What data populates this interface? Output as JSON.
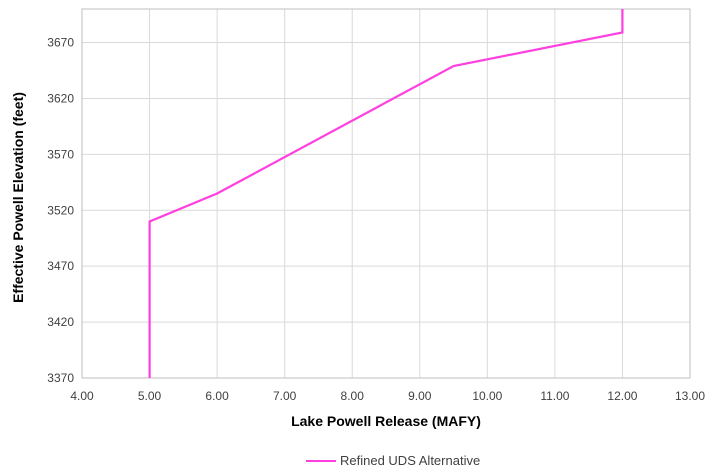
{
  "chart_data": {
    "type": "line",
    "title": "",
    "xlabel": "Lake Powell Release (MAFY)",
    "ylabel": "Effective Powell Elevation (feet)",
    "xlim": [
      4.0,
      13.0
    ],
    "ylim": [
      3370,
      3700
    ],
    "x_ticks": [
      "4.00",
      "5.00",
      "6.00",
      "7.00",
      "8.00",
      "9.00",
      "10.00",
      "11.00",
      "12.00",
      "13.00"
    ],
    "y_ticks": [
      "3370",
      "3420",
      "3470",
      "3520",
      "3570",
      "3620",
      "3670"
    ],
    "grid": true,
    "legend_position": "bottom",
    "series": [
      {
        "name": "Refined UDS Alternative",
        "color": "#FF3FDF",
        "points": [
          {
            "x": 5.0,
            "y": 3370
          },
          {
            "x": 5.0,
            "y": 3510
          },
          {
            "x": 6.0,
            "y": 3535
          },
          {
            "x": 9.5,
            "y": 3649
          },
          {
            "x": 12.0,
            "y": 3679
          },
          {
            "x": 12.0,
            "y": 3700
          }
        ]
      }
    ]
  }
}
